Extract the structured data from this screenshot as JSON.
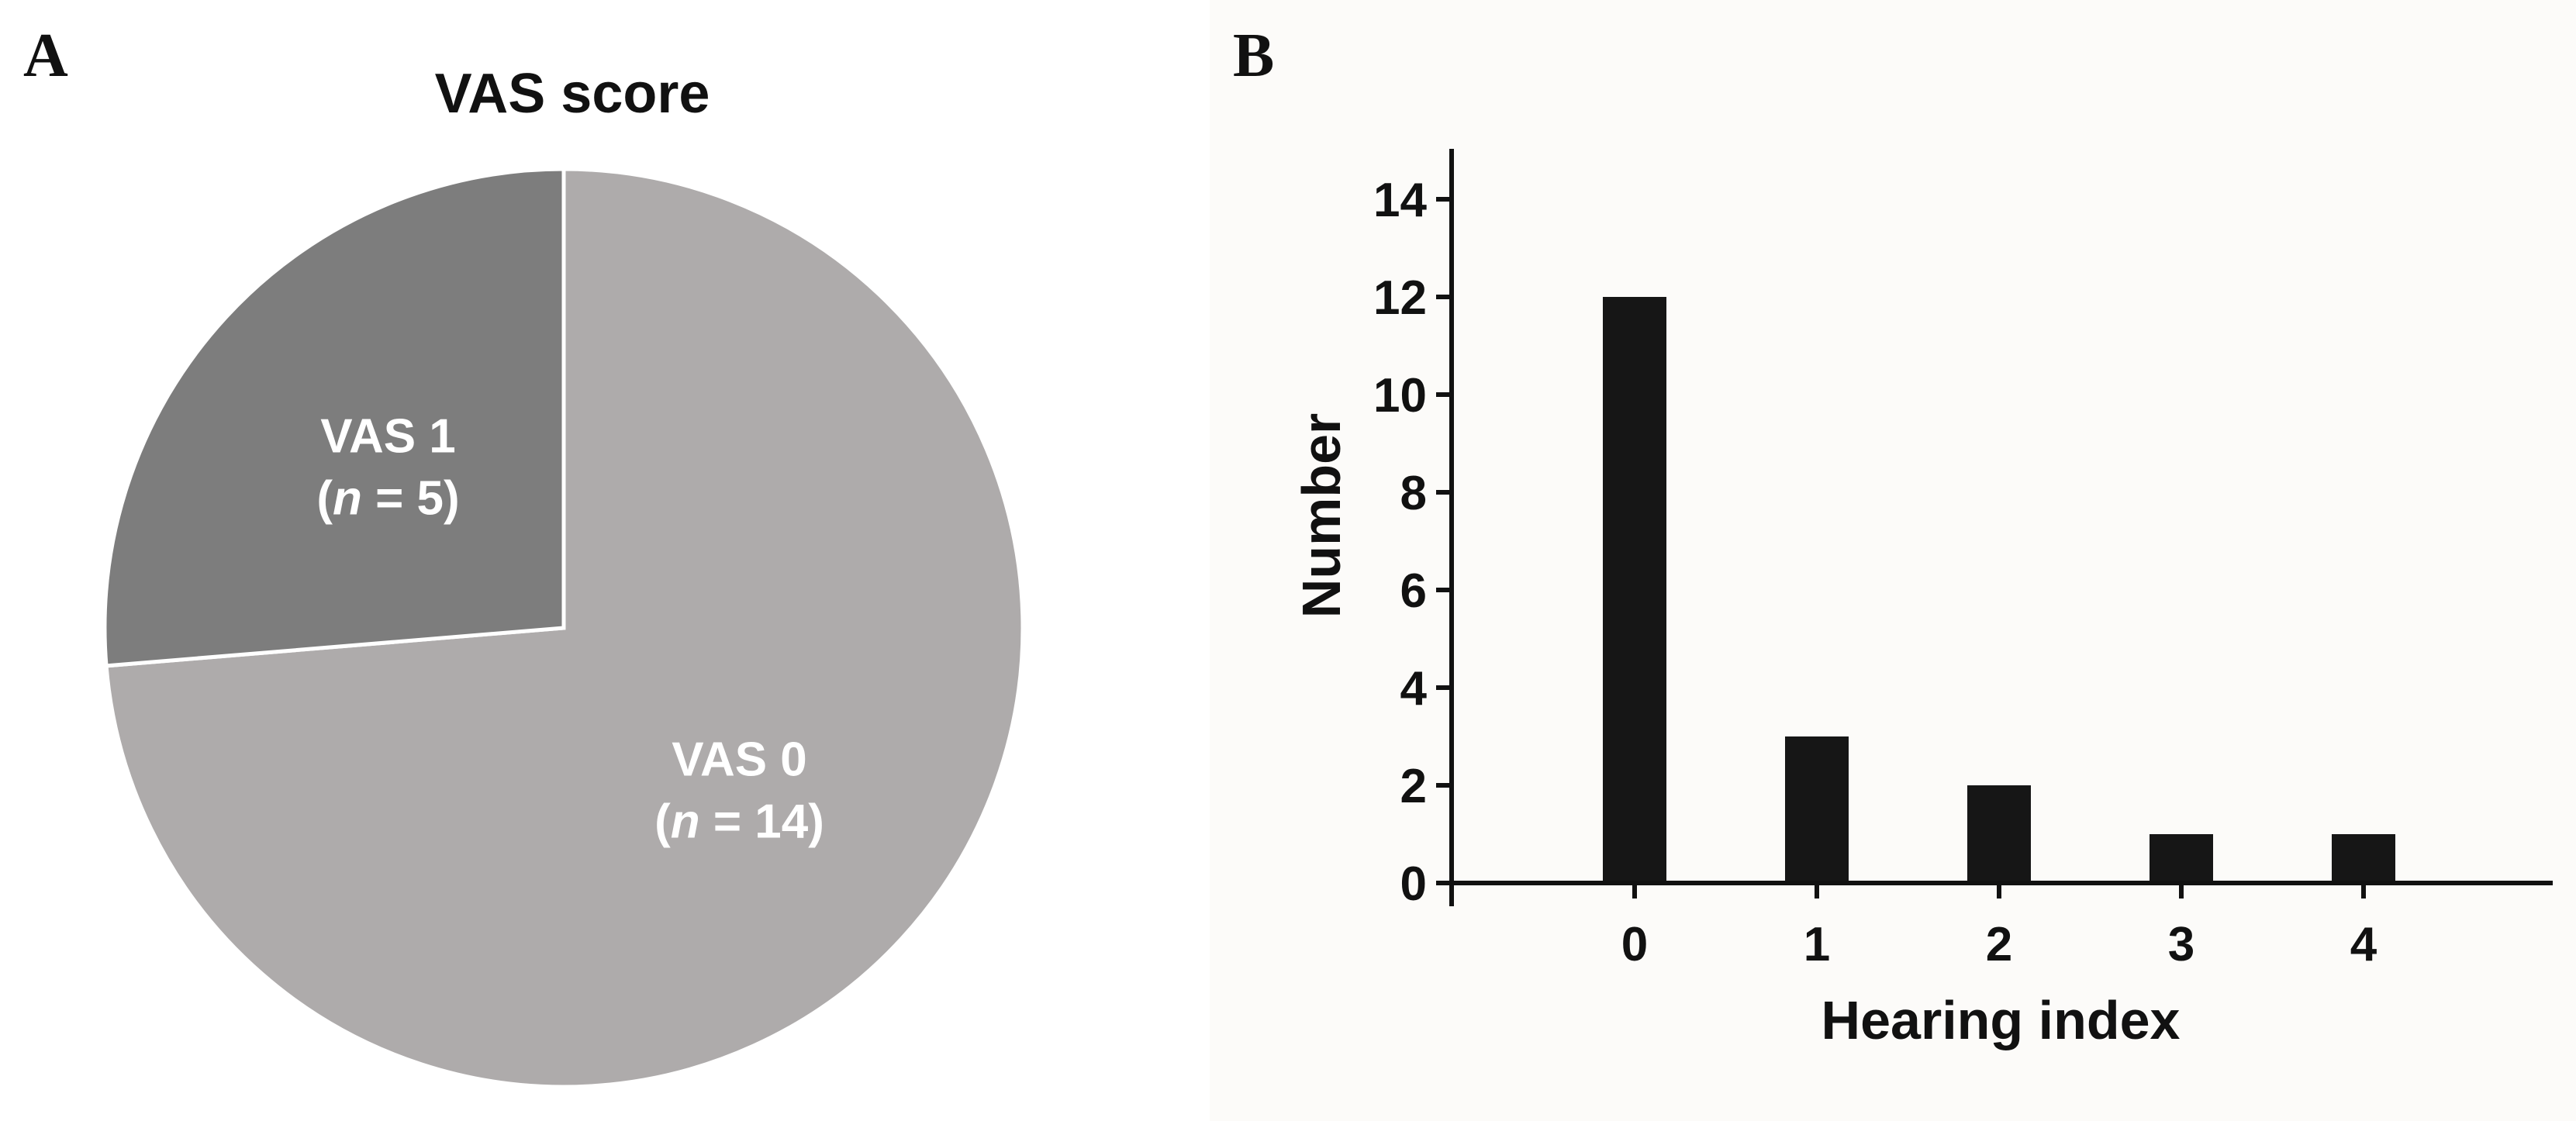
{
  "panels": {
    "a_letter": "A",
    "b_letter": "B"
  },
  "chart_data": [
    {
      "type": "pie",
      "title": "VAS score",
      "slices": [
        {
          "label": "VAS 0",
          "n_label": "14",
          "value": 14,
          "color": "#aeabab"
        },
        {
          "label": "VAS 1",
          "n_label": "5",
          "value": 5,
          "color": "#7d7d7d"
        }
      ],
      "n_symbol": "n"
    },
    {
      "type": "bar",
      "xlabel": "Hearing index",
      "ylabel": "Number",
      "categories": [
        "0",
        "1",
        "2",
        "3",
        "4"
      ],
      "values": [
        12,
        3,
        2,
        1,
        1
      ],
      "ylim": [
        0,
        15
      ],
      "yticks": [
        0,
        2,
        4,
        6,
        8,
        10,
        12,
        14
      ],
      "bar_color": "#161616",
      "grid": false
    }
  ]
}
